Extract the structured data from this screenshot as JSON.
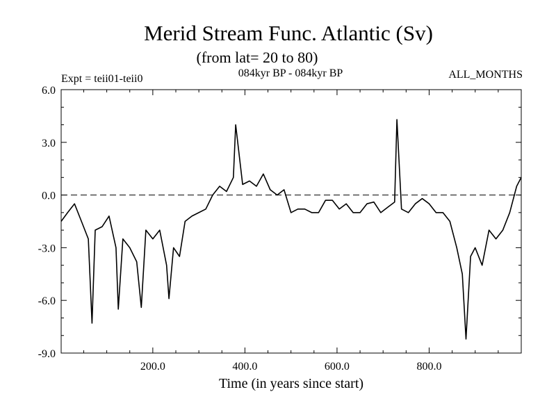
{
  "chart_data": {
    "type": "line",
    "title": "Merid Stream Func. Atlantic (Sv)",
    "subtitle": "(from lat= 20 to 80)",
    "expt_label": "Expt = teii01-teii0",
    "period_label": "084kyr BP - 084kyr BP",
    "months_label": "ALL_MONTHS",
    "xlabel": "Time (in years since start)",
    "ylabel": "",
    "xlim": [
      1,
      1000
    ],
    "ylim": [
      -9.0,
      6.0
    ],
    "x_ticks": [
      {
        "value": 200,
        "label": "200.0"
      },
      {
        "value": 400,
        "label": "400.0"
      },
      {
        "value": 600,
        "label": "600.0"
      },
      {
        "value": 800,
        "label": "800.0"
      }
    ],
    "y_ticks": [
      {
        "value": 6.0,
        "label": "6.0"
      },
      {
        "value": 3.0,
        "label": "3.0"
      },
      {
        "value": 0.0,
        "label": "0.0"
      },
      {
        "value": -3.0,
        "label": "-3.0"
      },
      {
        "value": -6.0,
        "label": "-6.0"
      },
      {
        "value": -9.0,
        "label": "-9.0"
      }
    ],
    "zero_line": 0.0,
    "series": [
      {
        "color": "#000000",
        "x": [
          1,
          15,
          30,
          45,
          60,
          68,
          75,
          90,
          105,
          120,
          125,
          135,
          150,
          165,
          175,
          185,
          200,
          215,
          230,
          235,
          245,
          258,
          270,
          285,
          300,
          315,
          330,
          345,
          360,
          375,
          380,
          395,
          410,
          425,
          440,
          455,
          470,
          485,
          500,
          515,
          530,
          545,
          560,
          575,
          590,
          605,
          620,
          635,
          650,
          665,
          680,
          695,
          710,
          725,
          730,
          740,
          755,
          770,
          785,
          800,
          815,
          830,
          845,
          860,
          872,
          880,
          890,
          900,
          915,
          930,
          945,
          960,
          975,
          990,
          1000
        ],
        "values": [
          -1.5,
          -1.0,
          -0.5,
          -1.5,
          -2.5,
          -7.3,
          -2.0,
          -1.8,
          -1.2,
          -3.0,
          -6.5,
          -2.5,
          -3.0,
          -3.8,
          -6.4,
          -2.0,
          -2.5,
          -2.0,
          -4.0,
          -5.9,
          -3.0,
          -3.5,
          -1.5,
          -1.2,
          -1.0,
          -0.8,
          0.0,
          0.5,
          0.2,
          1.0,
          4.0,
          0.6,
          0.8,
          0.5,
          1.2,
          0.3,
          0.0,
          0.3,
          -1.0,
          -0.8,
          -0.8,
          -1.0,
          -1.0,
          -0.3,
          -0.3,
          -0.8,
          -0.5,
          -1.0,
          -1.0,
          -0.5,
          -0.4,
          -1.0,
          -0.7,
          -0.4,
          4.3,
          -0.8,
          -1.0,
          -0.5,
          -0.2,
          -0.5,
          -1.0,
          -1.0,
          -1.5,
          -3.0,
          -4.5,
          -8.2,
          -3.5,
          -3.0,
          -4.0,
          -2.0,
          -2.5,
          -2.0,
          -1.0,
          0.5,
          1.0
        ]
      }
    ]
  }
}
